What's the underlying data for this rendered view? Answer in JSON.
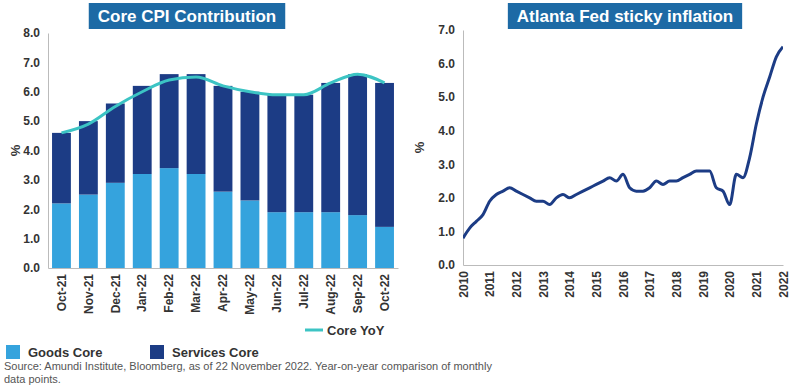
{
  "chart_data": [
    {
      "type": "bar",
      "title": "Core CPI Contribution",
      "y_label": "%",
      "stacked": true,
      "categories": [
        "Oct-21",
        "Nov-21",
        "Dec-21",
        "Jan-22",
        "Feb-22",
        "Mar-22",
        "Apr-22",
        "May-22",
        "Jun-22",
        "Jul-22",
        "Aug-22",
        "Sep-22",
        "Oct-22"
      ],
      "series": [
        {
          "name": "Goods Core",
          "type": "bar",
          "color": "#35a3dd",
          "values": [
            2.2,
            2.5,
            2.9,
            3.2,
            3.4,
            3.2,
            2.6,
            2.3,
            1.9,
            1.9,
            1.9,
            1.8,
            1.4
          ]
        },
        {
          "name": "Services Core",
          "type": "bar",
          "color": "#1c3c85",
          "values": [
            2.4,
            2.5,
            2.7,
            3.0,
            3.2,
            3.4,
            3.6,
            3.7,
            4.0,
            4.0,
            4.4,
            4.8,
            4.9
          ]
        },
        {
          "name": "Core YoY",
          "type": "line",
          "color": "#3cc4c4",
          "values": [
            4.6,
            4.9,
            5.5,
            6.0,
            6.4,
            6.5,
            6.2,
            6.0,
            5.9,
            5.9,
            6.3,
            6.6,
            6.3
          ]
        }
      ],
      "ylim": [
        0,
        8
      ],
      "yticks": [
        {
          "value": 0,
          "label": "0.0"
        },
        {
          "value": 1,
          "label": "1.0"
        },
        {
          "value": 2,
          "label": "2.0"
        },
        {
          "value": 3,
          "label": "3.0"
        },
        {
          "value": 4,
          "label": "4.0"
        },
        {
          "value": 5,
          "label": "5.0"
        },
        {
          "value": 6,
          "label": "6.0"
        },
        {
          "value": 7,
          "label": "7.0"
        },
        {
          "value": 8,
          "label": "8.0"
        }
      ],
      "legend": "bottom",
      "grid": false
    },
    {
      "type": "line",
      "title": "Atlanta Fed sticky inflation",
      "y_label": "%",
      "color": "#1c3c85",
      "x": [
        2010.0,
        2010.25,
        2010.5,
        2010.75,
        2011.0,
        2011.25,
        2011.5,
        2011.75,
        2012.0,
        2012.25,
        2012.5,
        2012.75,
        2013.0,
        2013.25,
        2013.5,
        2013.75,
        2014.0,
        2014.25,
        2014.5,
        2014.75,
        2015.0,
        2015.25,
        2015.5,
        2015.75,
        2016.0,
        2016.25,
        2016.5,
        2016.75,
        2017.0,
        2017.25,
        2017.5,
        2017.75,
        2018.0,
        2018.25,
        2018.5,
        2018.75,
        2019.0,
        2019.25,
        2019.5,
        2019.75,
        2020.0,
        2020.25,
        2020.5,
        2020.75,
        2021.0,
        2021.25,
        2021.5,
        2021.75,
        2022.0
      ],
      "values": [
        0.8,
        1.1,
        1.3,
        1.5,
        1.9,
        2.1,
        2.2,
        2.3,
        2.2,
        2.1,
        2.0,
        1.9,
        1.9,
        1.8,
        2.0,
        2.1,
        2.0,
        2.1,
        2.2,
        2.3,
        2.4,
        2.5,
        2.6,
        2.5,
        2.7,
        2.3,
        2.2,
        2.2,
        2.3,
        2.5,
        2.4,
        2.5,
        2.5,
        2.6,
        2.7,
        2.8,
        2.8,
        2.8,
        2.3,
        2.2,
        1.8,
        2.7,
        2.6,
        3.2,
        4.2,
        5.0,
        5.6,
        6.2,
        6.5
      ],
      "xlim": [
        2010,
        2022
      ],
      "xticks": [
        2010,
        2011,
        2012,
        2013,
        2014,
        2015,
        2016,
        2017,
        2018,
        2019,
        2020,
        2021,
        2022
      ],
      "ylim": [
        0,
        7
      ],
      "yticks": [
        {
          "value": 0,
          "label": "0.0"
        },
        {
          "value": 1,
          "label": "1.0"
        },
        {
          "value": 2,
          "label": "2.0"
        },
        {
          "value": 3,
          "label": "3.0"
        },
        {
          "value": 4,
          "label": "4.0"
        },
        {
          "value": 5,
          "label": "5.0"
        },
        {
          "value": 6,
          "label": "6.0"
        },
        {
          "value": 7,
          "label": "7.0"
        }
      ],
      "grid": false
    }
  ],
  "source": [
    "Source: Amundi Institute, Bloomberg, as of 22 November 2022. Year-on-year comparison of monthly",
    "data points."
  ]
}
